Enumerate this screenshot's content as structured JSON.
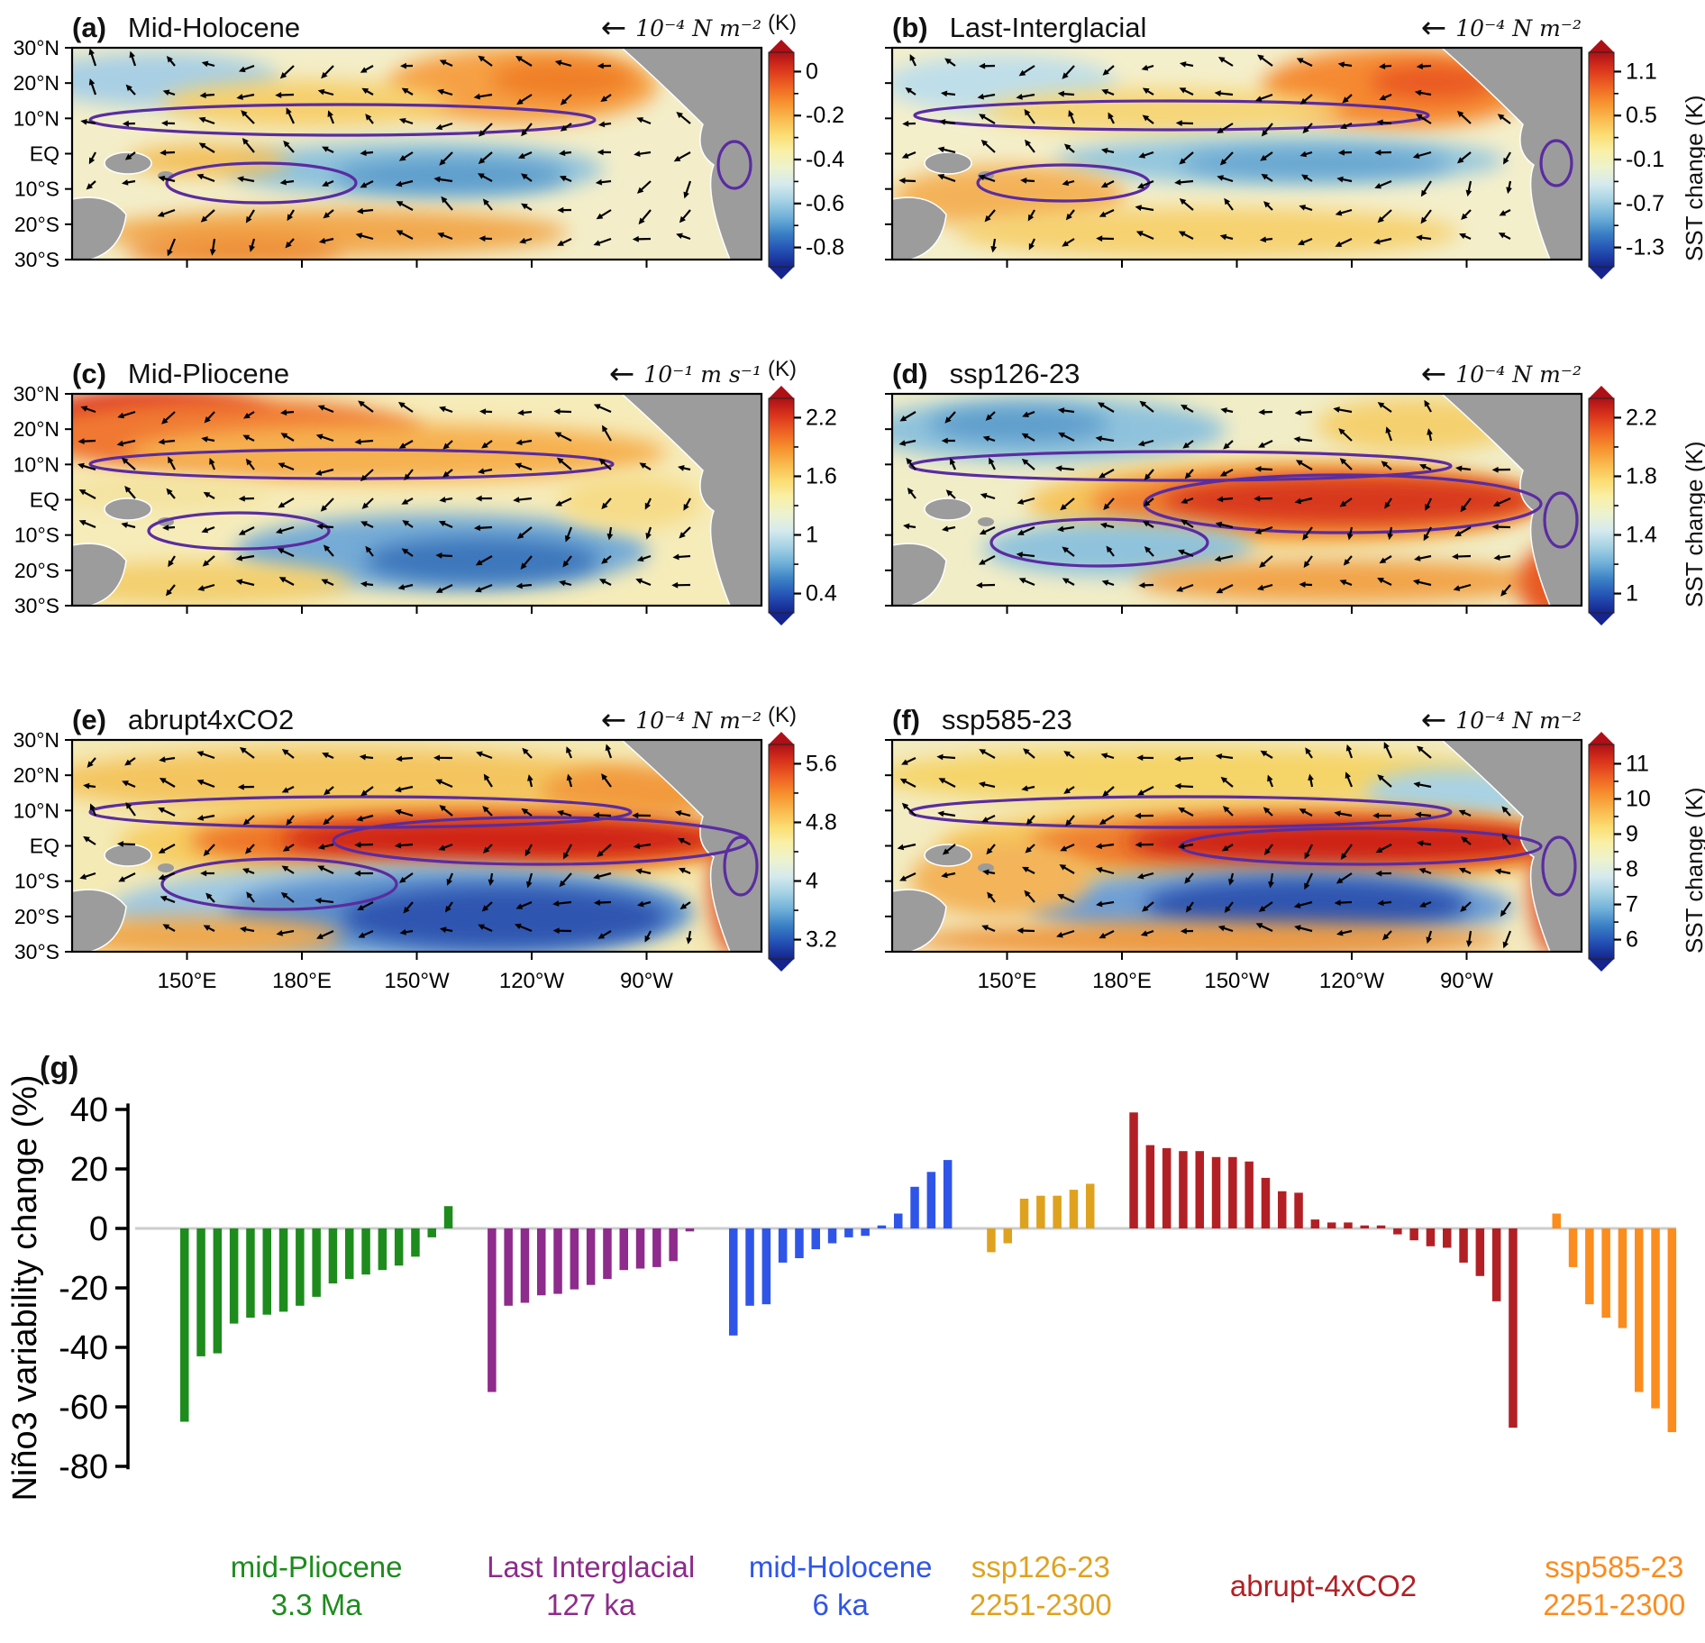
{
  "figure": {
    "panels": [
      {
        "id": "a",
        "label": "(a)",
        "title": "Mid-Holocene",
        "arrow_scale": "10⁻⁴ N m⁻²",
        "colorbar": {
          "top_label": "(K)",
          "ticks": [
            "0",
            "-0.2",
            "-0.4",
            "-0.6",
            "-0.8"
          ],
          "side_label": ""
        }
      },
      {
        "id": "b",
        "label": "(b)",
        "title": "Last-Interglacial",
        "arrow_scale": "10⁻⁴ N m⁻²",
        "colorbar": {
          "top_label": "",
          "ticks": [
            "1.1",
            "0.5",
            "-0.1",
            "-0.7",
            "-1.3"
          ],
          "side_label": "SST change (K)"
        }
      },
      {
        "id": "c",
        "label": "(c)",
        "title": "Mid-Pliocene",
        "arrow_scale": "10⁻¹ m s⁻¹",
        "colorbar": {
          "top_label": "(K)",
          "ticks": [
            "2.2",
            "1.6",
            "1",
            "0.4"
          ],
          "side_label": ""
        }
      },
      {
        "id": "d",
        "label": "(d)",
        "title": "ssp126-23",
        "arrow_scale": "10⁻⁴ N m⁻²",
        "colorbar": {
          "top_label": "",
          "ticks": [
            "2.2",
            "1.8",
            "1.4",
            "1"
          ],
          "side_label": "SST change (K)"
        }
      },
      {
        "id": "e",
        "label": "(e)",
        "title": "abrupt4xCO2",
        "arrow_scale": "10⁻⁴ N m⁻²",
        "colorbar": {
          "top_label": "(K)",
          "ticks": [
            "5.6",
            "4.8",
            "4",
            "3.2"
          ],
          "side_label": ""
        }
      },
      {
        "id": "f",
        "label": "(f)",
        "title": "ssp585-23",
        "arrow_scale": "10⁻⁴ N m⁻²",
        "colorbar": {
          "top_label": "",
          "ticks": [
            "11",
            "10",
            "9",
            "8",
            "7",
            "6"
          ],
          "side_label": "SST change (K)"
        }
      }
    ],
    "map_axes": {
      "y_ticks": [
        "30°N",
        "20°N",
        "10°N",
        "EQ",
        "10°S",
        "20°S",
        "30°S"
      ],
      "x_ticks": [
        "150°E",
        "180°E",
        "150°W",
        "120°W",
        "90°W"
      ]
    },
    "map_colors": {
      "land": "#9c9c9c",
      "contour": "#5a2ca0",
      "colormap": [
        "#16248e",
        "#2350b4",
        "#3a7fc4",
        "#6fb0d8",
        "#a5d2e4",
        "#d6eaee",
        "#edf2cf",
        "#f9f0a8",
        "#fbdd72",
        "#f9b94e",
        "#f6902e",
        "#ee6123",
        "#d9331b",
        "#ad1016"
      ]
    }
  },
  "chart_data": {
    "type": "bar",
    "panel_label": "(g)",
    "ylabel": "Niño3 variability change (%)",
    "ylim": [
      -80,
      40
    ],
    "yticks": [
      40,
      20,
      0,
      -20,
      -40,
      -60,
      -80
    ],
    "zero_line_color": "#cccccc",
    "groups": [
      {
        "name": "mid-Pliocene",
        "era": "3.3 Ma",
        "color": "#1d8c1d",
        "values": [
          -65,
          -43,
          -42,
          -32,
          -30,
          -29,
          -28,
          -26,
          -23,
          -18.5,
          -17,
          -15.5,
          -14,
          -12.5,
          -9.5,
          -3,
          7.5
        ]
      },
      {
        "name": "Last Interglacial",
        "era": "127 ka",
        "color": "#8e2b8c",
        "values": [
          -55,
          -26,
          -25,
          -22.5,
          -22,
          -20.5,
          -19,
          -17,
          -14,
          -13.5,
          -13,
          -11,
          -1
        ]
      },
      {
        "name": "mid-Holocene",
        "era": "6 ka",
        "color": "#2f55e8",
        "values": [
          -36,
          -26,
          -25.5,
          -11.5,
          -10,
          -7,
          -5,
          -3,
          -2.5,
          1,
          5,
          14,
          19,
          23
        ]
      },
      {
        "name": "ssp126-23",
        "era": "2251-2300",
        "color": "#dfa21f",
        "values": [
          -8,
          -5,
          10,
          11,
          11,
          13,
          15
        ]
      },
      {
        "name": "abrupt-4xCO2",
        "era": "",
        "color": "#b22025",
        "values": [
          39,
          28,
          27,
          26,
          26,
          24,
          24,
          22.5,
          17,
          12.5,
          12,
          3,
          2,
          2,
          1,
          1,
          -2,
          -4,
          -6,
          -6.5,
          -11.5,
          -16,
          -24.5,
          -67
        ]
      },
      {
        "name": "ssp585-23",
        "era": "2251-2300",
        "color": "#fb8c1e",
        "values": [
          5,
          -13,
          -25.5,
          -30,
          -33.5,
          -55,
          -60.5,
          -68.5
        ]
      }
    ]
  }
}
